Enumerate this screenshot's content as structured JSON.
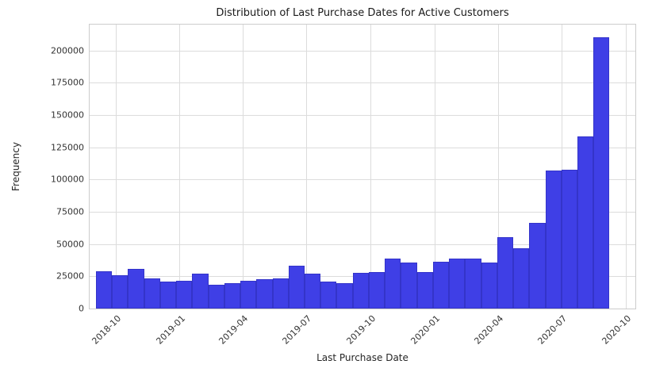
{
  "chart_data": {
    "type": "bar",
    "subtype": "histogram",
    "title": "Distribution of Last Purchase Dates for Active Customers",
    "xlabel": "Last Purchase Date",
    "ylabel": "Frequency",
    "legend": false,
    "grid": true,
    "x_axis": {
      "min": "2018-08-25",
      "max": "2020-10-15",
      "ticks": [
        "2018-10",
        "2019-01",
        "2019-04",
        "2019-07",
        "2019-10",
        "2020-01",
        "2020-04",
        "2020-07",
        "2020-10"
      ],
      "tick_dates": [
        "2018-10-01",
        "2019-01-01",
        "2019-04-01",
        "2019-07-01",
        "2019-10-01",
        "2020-01-01",
        "2020-04-01",
        "2020-07-01",
        "2020-10-01"
      ]
    },
    "y_axis": {
      "min": 0,
      "max": 220000,
      "ticks": [
        0,
        25000,
        50000,
        75000,
        100000,
        125000,
        150000,
        175000,
        200000
      ]
    },
    "bins": {
      "start_date": "2018-09-03",
      "bin_width_days": 23,
      "counts": [
        29000,
        26000,
        31000,
        23500,
        21000,
        21500,
        27000,
        18500,
        19500,
        21500,
        22500,
        23500,
        33000,
        27000,
        21000,
        19500,
        27500,
        28000,
        39000,
        35500,
        28500,
        36500,
        38500,
        39000,
        35500,
        55500,
        46500,
        66500,
        107000,
        107500,
        133500,
        210000
      ]
    },
    "style": {
      "bar_color": "#3f3fe6",
      "bar_edge_color": "#3434c9",
      "grid_color": "#dcdcdc",
      "plot_border_color": "#cccccc",
      "text_color": "#262626",
      "background": "#ffffff"
    }
  }
}
